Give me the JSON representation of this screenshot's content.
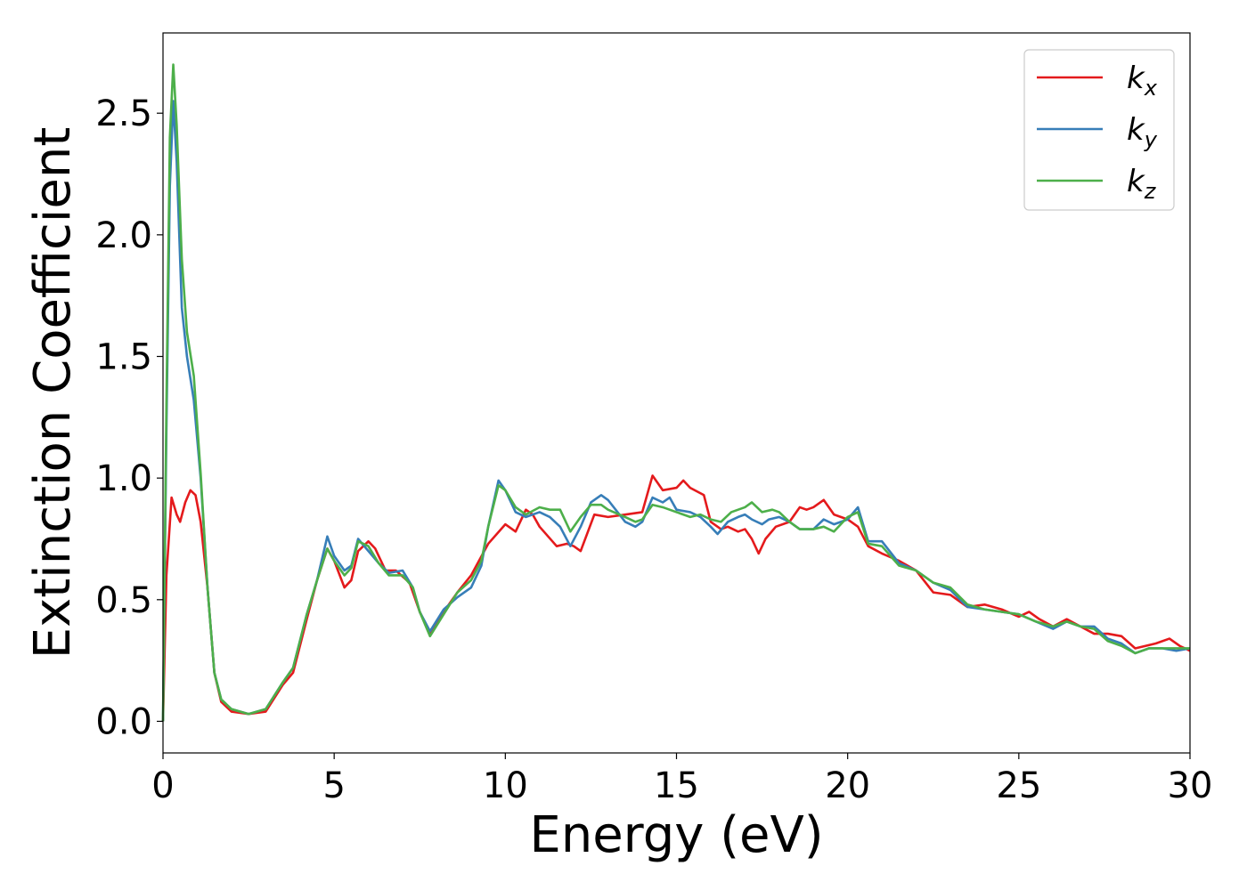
{
  "chart_data": {
    "type": "line",
    "title": "",
    "xlabel": "Energy (eV)",
    "ylabel": "Extinction Coefficient",
    "xlim": [
      0,
      30
    ],
    "ylim": [
      -0.13,
      2.83
    ],
    "xticks": [
      "0",
      "5",
      "10",
      "15",
      "20",
      "25",
      "30"
    ],
    "yticks": [
      "0.0",
      "0.5",
      "1.0",
      "1.5",
      "2.0",
      "2.5"
    ],
    "grid": false,
    "legend_position": "top-right",
    "series": [
      {
        "name": "k",
        "subscript": "x",
        "color": "#e41a1c",
        "points": [
          [
            0,
            0.0
          ],
          [
            0.1,
            0.6
          ],
          [
            0.25,
            0.92
          ],
          [
            0.4,
            0.85
          ],
          [
            0.5,
            0.82
          ],
          [
            0.65,
            0.9
          ],
          [
            0.8,
            0.95
          ],
          [
            0.95,
            0.93
          ],
          [
            1.1,
            0.82
          ],
          [
            1.3,
            0.55
          ],
          [
            1.5,
            0.2
          ],
          [
            1.7,
            0.08
          ],
          [
            2.0,
            0.04
          ],
          [
            2.5,
            0.03
          ],
          [
            3.0,
            0.04
          ],
          [
            3.5,
            0.15
          ],
          [
            3.8,
            0.2
          ],
          [
            4.2,
            0.42
          ],
          [
            4.5,
            0.58
          ],
          [
            4.8,
            0.71
          ],
          [
            5.0,
            0.66
          ],
          [
            5.3,
            0.55
          ],
          [
            5.5,
            0.58
          ],
          [
            5.7,
            0.7
          ],
          [
            6.0,
            0.74
          ],
          [
            6.2,
            0.71
          ],
          [
            6.5,
            0.62
          ],
          [
            6.8,
            0.62
          ],
          [
            7.2,
            0.57
          ],
          [
            7.5,
            0.45
          ],
          [
            7.8,
            0.36
          ],
          [
            8.2,
            0.45
          ],
          [
            8.6,
            0.53
          ],
          [
            9.0,
            0.6
          ],
          [
            9.5,
            0.73
          ],
          [
            10.0,
            0.81
          ],
          [
            10.3,
            0.78
          ],
          [
            10.6,
            0.87
          ],
          [
            10.8,
            0.85
          ],
          [
            11.0,
            0.8
          ],
          [
            11.5,
            0.72
          ],
          [
            11.8,
            0.73
          ],
          [
            12.0,
            0.72
          ],
          [
            12.2,
            0.7
          ],
          [
            12.6,
            0.85
          ],
          [
            13.0,
            0.84
          ],
          [
            13.5,
            0.85
          ],
          [
            14.0,
            0.86
          ],
          [
            14.3,
            1.01
          ],
          [
            14.6,
            0.95
          ],
          [
            15.0,
            0.96
          ],
          [
            15.2,
            0.99
          ],
          [
            15.4,
            0.96
          ],
          [
            15.8,
            0.93
          ],
          [
            16.0,
            0.82
          ],
          [
            16.3,
            0.79
          ],
          [
            16.5,
            0.8
          ],
          [
            16.8,
            0.78
          ],
          [
            17.0,
            0.79
          ],
          [
            17.2,
            0.75
          ],
          [
            17.4,
            0.69
          ],
          [
            17.6,
            0.75
          ],
          [
            17.9,
            0.8
          ],
          [
            18.3,
            0.82
          ],
          [
            18.6,
            0.88
          ],
          [
            18.8,
            0.87
          ],
          [
            19.0,
            0.88
          ],
          [
            19.3,
            0.91
          ],
          [
            19.6,
            0.85
          ],
          [
            20.0,
            0.83
          ],
          [
            20.3,
            0.8
          ],
          [
            20.6,
            0.72
          ],
          [
            21.0,
            0.69
          ],
          [
            21.5,
            0.66
          ],
          [
            22.0,
            0.62
          ],
          [
            22.5,
            0.53
          ],
          [
            23.0,
            0.52
          ],
          [
            23.5,
            0.47
          ],
          [
            24.0,
            0.48
          ],
          [
            24.5,
            0.46
          ],
          [
            25.0,
            0.43
          ],
          [
            25.3,
            0.45
          ],
          [
            25.6,
            0.42
          ],
          [
            26.0,
            0.39
          ],
          [
            26.4,
            0.42
          ],
          [
            26.8,
            0.39
          ],
          [
            27.2,
            0.36
          ],
          [
            27.6,
            0.36
          ],
          [
            28.0,
            0.35
          ],
          [
            28.4,
            0.3
          ],
          [
            28.7,
            0.31
          ],
          [
            29.0,
            0.32
          ],
          [
            29.4,
            0.34
          ],
          [
            29.7,
            0.31
          ],
          [
            30.0,
            0.29
          ]
        ]
      },
      {
        "name": "k",
        "subscript": "y",
        "color": "#377eb8",
        "points": [
          [
            0,
            0.0
          ],
          [
            0.1,
            1.2
          ],
          [
            0.2,
            2.2
          ],
          [
            0.3,
            2.55
          ],
          [
            0.4,
            2.3
          ],
          [
            0.55,
            1.7
          ],
          [
            0.7,
            1.5
          ],
          [
            0.9,
            1.32
          ],
          [
            1.1,
            1.0
          ],
          [
            1.3,
            0.55
          ],
          [
            1.5,
            0.2
          ],
          [
            1.7,
            0.09
          ],
          [
            2.0,
            0.05
          ],
          [
            2.5,
            0.03
          ],
          [
            3.0,
            0.05
          ],
          [
            3.5,
            0.16
          ],
          [
            3.8,
            0.22
          ],
          [
            4.2,
            0.44
          ],
          [
            4.5,
            0.58
          ],
          [
            4.8,
            0.76
          ],
          [
            5.0,
            0.68
          ],
          [
            5.3,
            0.62
          ],
          [
            5.5,
            0.64
          ],
          [
            5.7,
            0.75
          ],
          [
            6.0,
            0.7
          ],
          [
            6.3,
            0.65
          ],
          [
            6.6,
            0.61
          ],
          [
            7.0,
            0.62
          ],
          [
            7.3,
            0.55
          ],
          [
            7.5,
            0.45
          ],
          [
            7.8,
            0.37
          ],
          [
            8.2,
            0.46
          ],
          [
            8.6,
            0.51
          ],
          [
            9.0,
            0.55
          ],
          [
            9.3,
            0.64
          ],
          [
            9.5,
            0.8
          ],
          [
            9.8,
            0.99
          ],
          [
            10.0,
            0.95
          ],
          [
            10.3,
            0.86
          ],
          [
            10.6,
            0.84
          ],
          [
            11.0,
            0.86
          ],
          [
            11.3,
            0.84
          ],
          [
            11.6,
            0.8
          ],
          [
            11.9,
            0.72
          ],
          [
            12.2,
            0.8
          ],
          [
            12.5,
            0.9
          ],
          [
            12.8,
            0.93
          ],
          [
            13.0,
            0.91
          ],
          [
            13.5,
            0.82
          ],
          [
            13.8,
            0.8
          ],
          [
            14.0,
            0.82
          ],
          [
            14.3,
            0.92
          ],
          [
            14.6,
            0.9
          ],
          [
            14.8,
            0.92
          ],
          [
            15.0,
            0.87
          ],
          [
            15.4,
            0.86
          ],
          [
            15.7,
            0.84
          ],
          [
            16.0,
            0.8
          ],
          [
            16.2,
            0.77
          ],
          [
            16.5,
            0.82
          ],
          [
            16.8,
            0.84
          ],
          [
            17.0,
            0.85
          ],
          [
            17.2,
            0.83
          ],
          [
            17.5,
            0.81
          ],
          [
            17.7,
            0.83
          ],
          [
            18.0,
            0.84
          ],
          [
            18.3,
            0.82
          ],
          [
            18.6,
            0.79
          ],
          [
            19.0,
            0.79
          ],
          [
            19.3,
            0.83
          ],
          [
            19.6,
            0.81
          ],
          [
            20.0,
            0.83
          ],
          [
            20.3,
            0.88
          ],
          [
            20.6,
            0.74
          ],
          [
            21.0,
            0.74
          ],
          [
            21.5,
            0.65
          ],
          [
            22.0,
            0.62
          ],
          [
            22.5,
            0.57
          ],
          [
            23.0,
            0.54
          ],
          [
            23.5,
            0.47
          ],
          [
            24.0,
            0.46
          ],
          [
            24.5,
            0.45
          ],
          [
            25.0,
            0.44
          ],
          [
            25.5,
            0.41
          ],
          [
            26.0,
            0.38
          ],
          [
            26.4,
            0.41
          ],
          [
            26.8,
            0.39
          ],
          [
            27.2,
            0.39
          ],
          [
            27.6,
            0.34
          ],
          [
            28.0,
            0.32
          ],
          [
            28.4,
            0.28
          ],
          [
            28.8,
            0.3
          ],
          [
            29.2,
            0.3
          ],
          [
            29.6,
            0.29
          ],
          [
            30.0,
            0.3
          ]
        ]
      },
      {
        "name": "k",
        "subscript": "z",
        "color": "#4daf4a",
        "points": [
          [
            0,
            0.0
          ],
          [
            0.1,
            1.3
          ],
          [
            0.2,
            2.4
          ],
          [
            0.3,
            2.7
          ],
          [
            0.4,
            2.45
          ],
          [
            0.55,
            1.9
          ],
          [
            0.7,
            1.6
          ],
          [
            0.9,
            1.42
          ],
          [
            1.1,
            1.02
          ],
          [
            1.3,
            0.55
          ],
          [
            1.5,
            0.2
          ],
          [
            1.7,
            0.09
          ],
          [
            2.0,
            0.05
          ],
          [
            2.5,
            0.03
          ],
          [
            3.0,
            0.05
          ],
          [
            3.5,
            0.16
          ],
          [
            3.8,
            0.22
          ],
          [
            4.2,
            0.44
          ],
          [
            4.5,
            0.58
          ],
          [
            4.8,
            0.71
          ],
          [
            5.0,
            0.66
          ],
          [
            5.3,
            0.6
          ],
          [
            5.5,
            0.63
          ],
          [
            5.7,
            0.74
          ],
          [
            6.0,
            0.72
          ],
          [
            6.3,
            0.65
          ],
          [
            6.6,
            0.6
          ],
          [
            7.0,
            0.6
          ],
          [
            7.3,
            0.55
          ],
          [
            7.5,
            0.45
          ],
          [
            7.8,
            0.35
          ],
          [
            8.2,
            0.44
          ],
          [
            8.6,
            0.53
          ],
          [
            9.0,
            0.58
          ],
          [
            9.3,
            0.66
          ],
          [
            9.5,
            0.8
          ],
          [
            9.8,
            0.97
          ],
          [
            10.0,
            0.95
          ],
          [
            10.3,
            0.88
          ],
          [
            10.6,
            0.85
          ],
          [
            11.0,
            0.88
          ],
          [
            11.3,
            0.87
          ],
          [
            11.6,
            0.87
          ],
          [
            11.9,
            0.78
          ],
          [
            12.2,
            0.84
          ],
          [
            12.5,
            0.89
          ],
          [
            12.8,
            0.89
          ],
          [
            13.0,
            0.87
          ],
          [
            13.5,
            0.84
          ],
          [
            13.8,
            0.82
          ],
          [
            14.0,
            0.83
          ],
          [
            14.3,
            0.89
          ],
          [
            14.6,
            0.88
          ],
          [
            15.0,
            0.86
          ],
          [
            15.4,
            0.84
          ],
          [
            15.7,
            0.85
          ],
          [
            16.0,
            0.83
          ],
          [
            16.3,
            0.82
          ],
          [
            16.6,
            0.86
          ],
          [
            17.0,
            0.88
          ],
          [
            17.2,
            0.9
          ],
          [
            17.5,
            0.86
          ],
          [
            17.8,
            0.87
          ],
          [
            18.0,
            0.86
          ],
          [
            18.3,
            0.82
          ],
          [
            18.6,
            0.79
          ],
          [
            19.0,
            0.79
          ],
          [
            19.3,
            0.8
          ],
          [
            19.6,
            0.78
          ],
          [
            20.0,
            0.84
          ],
          [
            20.3,
            0.86
          ],
          [
            20.6,
            0.73
          ],
          [
            21.0,
            0.72
          ],
          [
            21.5,
            0.64
          ],
          [
            22.0,
            0.62
          ],
          [
            22.5,
            0.57
          ],
          [
            23.0,
            0.55
          ],
          [
            23.5,
            0.48
          ],
          [
            24.0,
            0.46
          ],
          [
            24.5,
            0.45
          ],
          [
            25.0,
            0.44
          ],
          [
            25.5,
            0.41
          ],
          [
            26.0,
            0.39
          ],
          [
            26.4,
            0.41
          ],
          [
            26.8,
            0.39
          ],
          [
            27.2,
            0.38
          ],
          [
            27.6,
            0.33
          ],
          [
            28.0,
            0.31
          ],
          [
            28.4,
            0.28
          ],
          [
            28.8,
            0.3
          ],
          [
            29.2,
            0.3
          ],
          [
            29.6,
            0.3
          ],
          [
            30.0,
            0.3
          ]
        ]
      }
    ]
  }
}
